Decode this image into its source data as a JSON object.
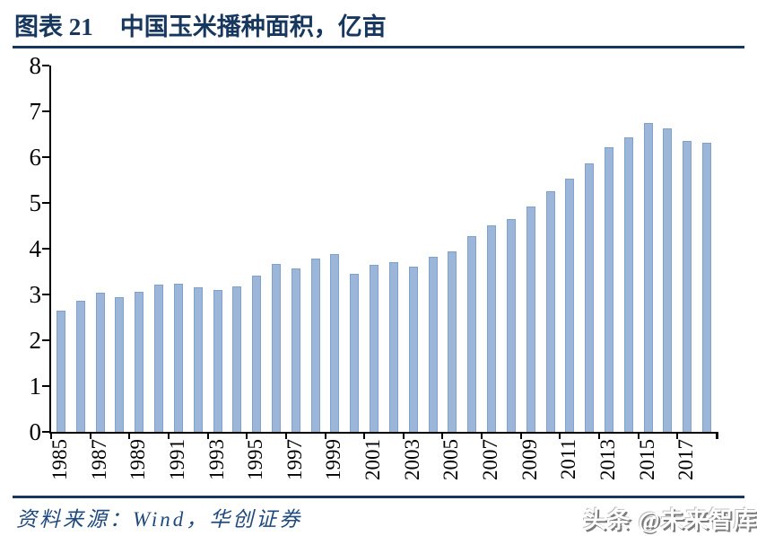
{
  "header": {
    "figure_label": "图表 21",
    "chart_title": "中国玉米播种面积，亿亩"
  },
  "footer": {
    "source": "资料来源：Wind，华创证券",
    "watermark": "头条 @未来智库"
  },
  "colors": {
    "navy": "#17375E",
    "source_text": "#1F497D",
    "bar_fill": "#9CB6D9",
    "bar_border": "#7FA1CB",
    "axis": "#000000"
  },
  "chart_data": {
    "type": "bar",
    "title": "中国玉米播种面积，亿亩",
    "ylabel": "亿亩",
    "xlabel": "",
    "categories": [
      1985,
      1986,
      1987,
      1988,
      1989,
      1990,
      1991,
      1992,
      1993,
      1994,
      1995,
      1996,
      1997,
      1998,
      1999,
      2000,
      2001,
      2002,
      2003,
      2004,
      2005,
      2006,
      2007,
      2008,
      2009,
      2010,
      2011,
      2012,
      2013,
      2014,
      2015,
      2016,
      2017,
      2018
    ],
    "values": [
      2.65,
      2.87,
      3.03,
      2.95,
      3.05,
      3.21,
      3.24,
      3.16,
      3.1,
      3.17,
      3.42,
      3.67,
      3.57,
      3.79,
      3.89,
      3.46,
      3.64,
      3.7,
      3.61,
      3.82,
      3.95,
      4.27,
      4.51,
      4.65,
      4.92,
      5.25,
      5.52,
      5.87,
      6.21,
      6.44,
      6.75,
      6.63,
      6.36,
      6.32
    ],
    "ylim": [
      0,
      8
    ],
    "ytick_step": 1,
    "xtick_labels": [
      "1985",
      "1987",
      "1989",
      "1991",
      "1993",
      "1995",
      "1997",
      "1999",
      "2001",
      "2003",
      "2005",
      "2007",
      "2009",
      "2011",
      "2013",
      "2015",
      "2017"
    ],
    "xtick_every": 2,
    "grid": false,
    "legend": "none"
  }
}
